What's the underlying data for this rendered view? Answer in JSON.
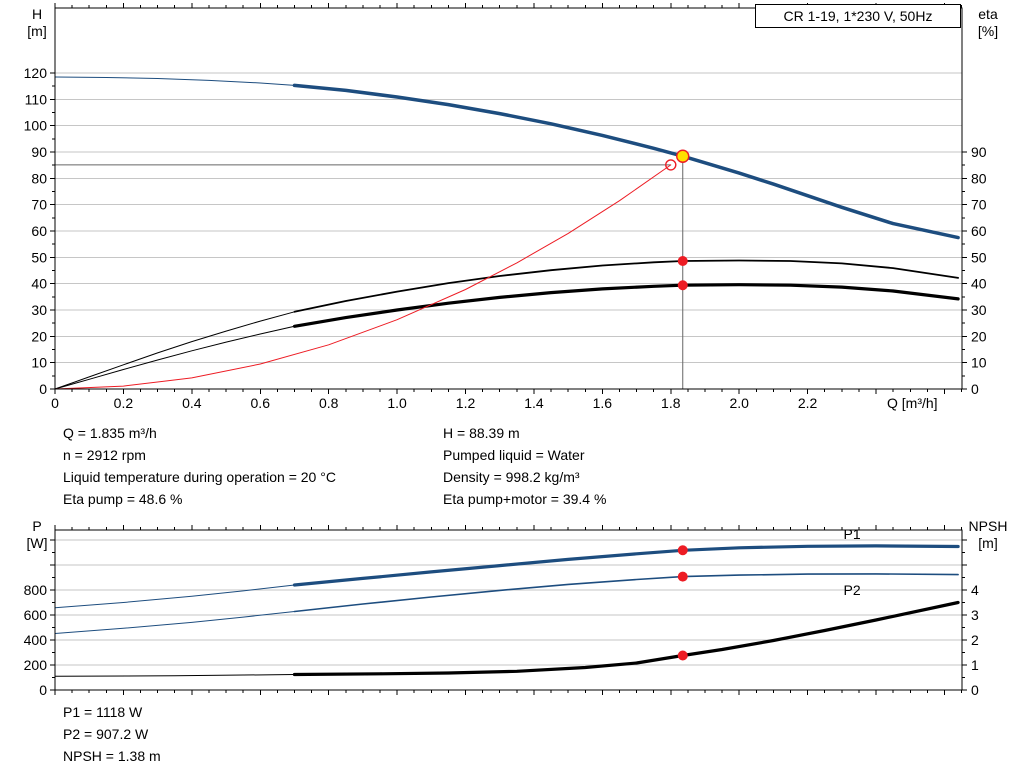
{
  "colors": {
    "curve_blue": "#1d4d7f",
    "curve_black": "#000000",
    "system_curve_red": "#ed1c24",
    "marker_red": "#ed1c24",
    "duty_point_yellow": "#ffe000",
    "grid_gray": "#c6c6c6",
    "crosshair_gray": "#666666",
    "axis_black": "#000000"
  },
  "info_top": {
    "left": [
      "Q = 1.835 m³/h",
      "n = 2912 rpm",
      "Liquid temperature during operation = 20 °C",
      "Eta pump = 48.6 %"
    ],
    "right": [
      "H = 88.39 m",
      "Pumped liquid = Water",
      "Density = 998.2 kg/m³",
      "Eta pump+motor = 39.4 %"
    ]
  },
  "info_bottom": [
    "P1 = 1118 W",
    "P2 = 907.2 W",
    "NPSH = 1.38 m"
  ],
  "chart_data": [
    {
      "id": "qh-eta-chart",
      "type": "line",
      "title": "CR 1-19, 1*230 V, 50Hz",
      "x_axis": {
        "label": "Q [m³/h]",
        "min": 0,
        "max": 2.65,
        "tick_step": 0.2,
        "tick_labels": [
          "0",
          "0.2",
          "0.4",
          "0.6",
          "0.8",
          "1.0",
          "1.2",
          "1.4",
          "1.6",
          "1.8",
          "2.0",
          "2.2"
        ]
      },
      "y_axis_left": {
        "label": "H",
        "unit": "[m]",
        "min": 0,
        "max": 145,
        "ticks": [
          0,
          10,
          20,
          30,
          40,
          50,
          60,
          70,
          80,
          90,
          100,
          110,
          120
        ]
      },
      "y_axis_right": {
        "label": "eta",
        "unit": "[%]",
        "min": 0,
        "max": 145,
        "ticks": [
          0,
          10,
          20,
          30,
          40,
          50,
          60,
          70,
          80,
          90
        ]
      },
      "grid": {
        "axis": "H",
        "values": [
          10,
          20,
          30,
          40,
          50,
          60,
          70,
          80,
          90,
          100,
          110,
          120
        ]
      },
      "series": [
        {
          "name": "pump-curve-lead",
          "axis": "H",
          "color": "blue",
          "width": 1,
          "points": [
            [
              0,
              118.5
            ],
            [
              0.15,
              118.3
            ],
            [
              0.3,
              117.9
            ],
            [
              0.45,
              117.2
            ],
            [
              0.6,
              116.2
            ],
            [
              0.7,
              115.3
            ]
          ]
        },
        {
          "name": "pump-curve",
          "axis": "H",
          "color": "blue",
          "width": 3.5,
          "points": [
            [
              0.7,
              115.3
            ],
            [
              0.85,
              113.4
            ],
            [
              1.0,
              110.9
            ],
            [
              1.15,
              108.0
            ],
            [
              1.3,
              104.6
            ],
            [
              1.45,
              100.7
            ],
            [
              1.6,
              96.3
            ],
            [
              1.75,
              91.4
            ],
            [
              1.835,
              88.39
            ],
            [
              1.9,
              85.9
            ],
            [
              2.0,
              82.0
            ],
            [
              2.1,
              77.8
            ],
            [
              2.2,
              73.4
            ],
            [
              2.3,
              69.0
            ],
            [
              2.45,
              62.8
            ],
            [
              2.64,
              57.5
            ]
          ]
        },
        {
          "name": "eta-pump-curve-lead",
          "axis": "eta",
          "color": "black",
          "width": 1,
          "points": [
            [
              0,
              0
            ],
            [
              0.1,
              4.6
            ],
            [
              0.2,
              9.2
            ],
            [
              0.3,
              13.7
            ],
            [
              0.4,
              18.0
            ],
            [
              0.5,
              22.0
            ],
            [
              0.6,
              25.8
            ],
            [
              0.7,
              29.3
            ]
          ]
        },
        {
          "name": "eta-pump-curve",
          "axis": "eta",
          "color": "black",
          "width": 1.8,
          "points": [
            [
              0.7,
              29.3
            ],
            [
              0.85,
              33.4
            ],
            [
              1.0,
              37.0
            ],
            [
              1.15,
              40.2
            ],
            [
              1.3,
              42.9
            ],
            [
              1.45,
              45.1
            ],
            [
              1.6,
              46.9
            ],
            [
              1.75,
              48.1
            ],
            [
              1.835,
              48.6
            ],
            [
              2.0,
              48.8
            ],
            [
              2.15,
              48.6
            ],
            [
              2.3,
              47.7
            ],
            [
              2.45,
              45.9
            ],
            [
              2.64,
              42.2
            ]
          ]
        },
        {
          "name": "eta-pump-motor-curve-lead",
          "axis": "eta",
          "color": "black",
          "width": 1,
          "points": [
            [
              0,
              0
            ],
            [
              0.1,
              3.7
            ],
            [
              0.2,
              7.4
            ],
            [
              0.3,
              11.0
            ],
            [
              0.4,
              14.5
            ],
            [
              0.5,
              17.8
            ],
            [
              0.6,
              20.9
            ],
            [
              0.7,
              23.8
            ]
          ]
        },
        {
          "name": "eta-pump-motor-curve",
          "axis": "eta",
          "color": "black",
          "width": 3.2,
          "points": [
            [
              0.7,
              23.8
            ],
            [
              0.85,
              27.1
            ],
            [
              1.0,
              30.0
            ],
            [
              1.15,
              32.6
            ],
            [
              1.3,
              34.8
            ],
            [
              1.45,
              36.6
            ],
            [
              1.6,
              38.0
            ],
            [
              1.75,
              39.0
            ],
            [
              1.835,
              39.4
            ],
            [
              2.0,
              39.6
            ],
            [
              2.15,
              39.4
            ],
            [
              2.3,
              38.7
            ],
            [
              2.45,
              37.2
            ],
            [
              2.64,
              34.2
            ]
          ]
        },
        {
          "name": "system-curve",
          "axis": "H",
          "color": "red",
          "width": 1,
          "points": [
            [
              0,
              0
            ],
            [
              0.2,
              1.1
            ],
            [
              0.4,
              4.2
            ],
            [
              0.6,
              9.5
            ],
            [
              0.8,
              16.8
            ],
            [
              1.0,
              26.3
            ],
            [
              1.2,
              37.8
            ],
            [
              1.35,
              47.9
            ],
            [
              1.5,
              59.1
            ],
            [
              1.65,
              71.5
            ],
            [
              1.8,
              85.1
            ]
          ]
        }
      ],
      "crosshair": {
        "horizontal": {
          "axis": "H",
          "value": 85.1,
          "q_from": 0,
          "q_to": 1.8
        },
        "vertical": {
          "axis": "H",
          "q": 1.835,
          "from_value": 88.39,
          "to_value": 0
        }
      },
      "markers": [
        {
          "name": "duty-point-requested",
          "axis": "H",
          "q": 1.8,
          "v": 85.1,
          "style": "open-red"
        },
        {
          "name": "duty-point-actual",
          "axis": "H",
          "q": 1.835,
          "v": 88.39,
          "style": "yellow"
        },
        {
          "name": "eta-pump-point",
          "axis": "eta",
          "q": 1.835,
          "v": 48.6,
          "style": "red"
        },
        {
          "name": "eta-pump-motor-point",
          "axis": "eta",
          "q": 1.835,
          "v": 39.4,
          "style": "red"
        }
      ],
      "labels": []
    },
    {
      "id": "power-npsh-chart",
      "type": "line",
      "title": "",
      "x_axis": {
        "label": "",
        "min": 0,
        "max": 2.65,
        "tick_step": 0.2,
        "tick_labels": []
      },
      "y_axis_left": {
        "label": "P",
        "unit": "[W]",
        "min": 0,
        "max": 1280,
        "ticks": [
          0,
          200,
          400,
          600,
          800
        ]
      },
      "y_axis_right": {
        "label": "NPSH",
        "unit": "[m]",
        "min": 0,
        "max": 6.4,
        "ticks": [
          0,
          1,
          2,
          3,
          4
        ]
      },
      "grid": {
        "axis": "P",
        "values": [
          200,
          400,
          600,
          800,
          1000,
          1200
        ]
      },
      "series": [
        {
          "name": "p1-curve-lead",
          "axis": "P",
          "color": "blue",
          "width": 1,
          "points": [
            [
              0,
              658
            ],
            [
              0.2,
              700
            ],
            [
              0.4,
              750
            ],
            [
              0.55,
              793
            ],
            [
              0.7,
              840
            ]
          ]
        },
        {
          "name": "p1-curve",
          "axis": "P",
          "color": "blue",
          "width": 3.2,
          "points": [
            [
              0.7,
              840
            ],
            [
              0.9,
              893
            ],
            [
              1.1,
              945
            ],
            [
              1.3,
              995
            ],
            [
              1.5,
              1045
            ],
            [
              1.7,
              1090
            ],
            [
              1.835,
              1118
            ],
            [
              2.0,
              1138
            ],
            [
              2.2,
              1150
            ],
            [
              2.4,
              1153
            ],
            [
              2.64,
              1148
            ]
          ]
        },
        {
          "name": "p2-curve-lead",
          "axis": "P",
          "color": "blue",
          "width": 1,
          "points": [
            [
              0,
              452
            ],
            [
              0.2,
              494
            ],
            [
              0.4,
              541
            ],
            [
              0.55,
              583
            ],
            [
              0.7,
              628
            ]
          ]
        },
        {
          "name": "p2-curve",
          "axis": "P",
          "color": "blue",
          "width": 1.6,
          "points": [
            [
              0.7,
              628
            ],
            [
              0.9,
              688
            ],
            [
              1.1,
              744
            ],
            [
              1.3,
              797
            ],
            [
              1.5,
              845
            ],
            [
              1.7,
              884
            ],
            [
              1.835,
              907.2
            ],
            [
              2.0,
              919
            ],
            [
              2.2,
              927
            ],
            [
              2.4,
              929
            ],
            [
              2.64,
              923
            ]
          ]
        },
        {
          "name": "npsh-curve-lead",
          "axis": "NPSH",
          "color": "black",
          "width": 1,
          "points": [
            [
              0,
              0.55
            ],
            [
              0.35,
              0.57
            ],
            [
              0.7,
              0.62
            ]
          ]
        },
        {
          "name": "npsh-curve",
          "axis": "NPSH",
          "color": "black",
          "width": 3.2,
          "points": [
            [
              0.7,
              0.62
            ],
            [
              0.95,
              0.65
            ],
            [
              1.15,
              0.68
            ],
            [
              1.35,
              0.75
            ],
            [
              1.55,
              0.9
            ],
            [
              1.7,
              1.08
            ],
            [
              1.835,
              1.38
            ],
            [
              1.95,
              1.62
            ],
            [
              2.1,
              1.98
            ],
            [
              2.25,
              2.38
            ],
            [
              2.4,
              2.8
            ],
            [
              2.64,
              3.5
            ]
          ]
        }
      ],
      "crosshair": null,
      "markers": [
        {
          "name": "p1-point",
          "axis": "P",
          "q": 1.835,
          "v": 1118,
          "style": "red"
        },
        {
          "name": "p2-point",
          "axis": "P",
          "q": 1.835,
          "v": 907.2,
          "style": "red"
        },
        {
          "name": "npsh-point",
          "axis": "NPSH",
          "q": 1.835,
          "v": 1.38,
          "style": "red"
        }
      ],
      "labels": [
        {
          "name": "p1-curve-label",
          "text": "P1",
          "axis": "P",
          "q": 2.33,
          "v": 1210,
          "color": "blue"
        },
        {
          "name": "p2-curve-label",
          "text": "P2",
          "axis": "P",
          "q": 2.33,
          "v": 762,
          "color": "blue"
        }
      ]
    }
  ]
}
